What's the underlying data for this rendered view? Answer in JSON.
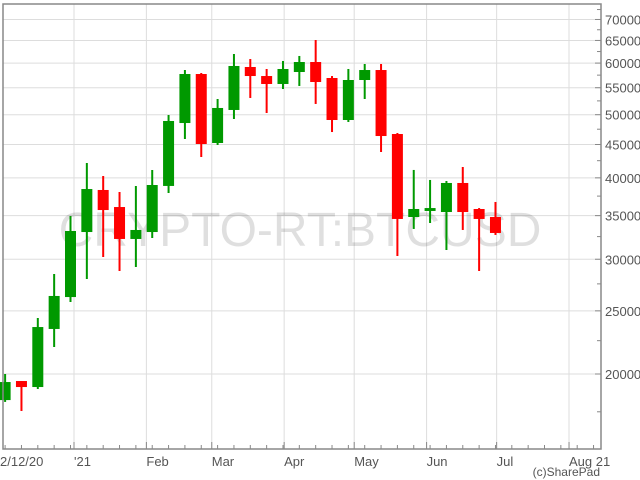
{
  "chart_data": {
    "type": "candlestick",
    "title": "",
    "watermark": "CRYPTO-RT:BTCUSD",
    "copyright": "(c)SharePad",
    "y_scale": "log",
    "ylim": [
      15300,
      74000
    ],
    "y_ticks": [
      20000,
      25000,
      30000,
      35000,
      40000,
      45000,
      50000,
      55000,
      60000,
      65000,
      70000
    ],
    "y_tick_labels": [
      "20000",
      "25000",
      "30000",
      "35000",
      "40000",
      "45000",
      "50000",
      "55000",
      "60000",
      "65000",
      "70000"
    ],
    "x_ticks": [
      {
        "date": "2020-12-02",
        "label": "2/12/20"
      },
      {
        "date": "2021-01-01",
        "label": "'21"
      },
      {
        "date": "2021-02-01",
        "label": "Feb"
      },
      {
        "date": "2021-03-01",
        "label": "Mar"
      },
      {
        "date": "2021-04-01",
        "label": "Apr"
      },
      {
        "date": "2021-05-01",
        "label": "May"
      },
      {
        "date": "2021-06-01",
        "label": "Jun"
      },
      {
        "date": "2021-07-01",
        "label": "Jul"
      },
      {
        "date": "2021-08-01",
        "label": "Aug 21"
      }
    ],
    "grid": true,
    "colors": {
      "up": "#009900",
      "down": "#ff0000",
      "grid": "#dddddd",
      "axis": "#888888"
    },
    "interval": "weekly",
    "candles": [
      {
        "date": "2020-11-30",
        "open": 18240,
        "high": 20000,
        "low": 18120,
        "close": 19440
      },
      {
        "date": "2020-12-07",
        "open": 19510,
        "high": 19510,
        "low": 17550,
        "close": 19100
      },
      {
        "date": "2020-12-14",
        "open": 19100,
        "high": 24380,
        "low": 18970,
        "close": 23610
      },
      {
        "date": "2020-12-21",
        "open": 23450,
        "high": 28480,
        "low": 22000,
        "close": 26350
      },
      {
        "date": "2020-12-28",
        "open": 26250,
        "high": 34950,
        "low": 25790,
        "close": 33150
      },
      {
        "date": "2021-01-04",
        "open": 33030,
        "high": 42150,
        "low": 27980,
        "close": 38450
      },
      {
        "date": "2021-01-11",
        "open": 38320,
        "high": 40260,
        "low": 30240,
        "close": 35700
      },
      {
        "date": "2021-01-18",
        "open": 36080,
        "high": 38050,
        "low": 28780,
        "close": 32230
      },
      {
        "date": "2021-01-25",
        "open": 32230,
        "high": 38870,
        "low": 29190,
        "close": 33270
      },
      {
        "date": "2021-02-01",
        "open": 33030,
        "high": 41130,
        "low": 32340,
        "close": 39000
      },
      {
        "date": "2021-02-08",
        "open": 38870,
        "high": 49940,
        "low": 37910,
        "close": 48900
      },
      {
        "date": "2021-02-15",
        "open": 48550,
        "high": 58550,
        "low": 45890,
        "close": 57730
      },
      {
        "date": "2021-02-22",
        "open": 57730,
        "high": 57940,
        "low": 43060,
        "close": 45080
      },
      {
        "date": "2021-03-01",
        "open": 45240,
        "high": 52850,
        "low": 44920,
        "close": 51200
      },
      {
        "date": "2021-03-08",
        "open": 50840,
        "high": 61960,
        "low": 49250,
        "close": 59390
      },
      {
        "date": "2021-03-15",
        "open": 59180,
        "high": 60870,
        "low": 53040,
        "close": 57320
      },
      {
        "date": "2021-03-22",
        "open": 57320,
        "high": 58760,
        "low": 50300,
        "close": 55730
      },
      {
        "date": "2021-03-29",
        "open": 55730,
        "high": 60450,
        "low": 54750,
        "close": 58760
      },
      {
        "date": "2021-04-05",
        "open": 58140,
        "high": 61530,
        "low": 55340,
        "close": 60230
      },
      {
        "date": "2021-04-12",
        "open": 60230,
        "high": 65100,
        "low": 51930,
        "close": 56120
      },
      {
        "date": "2021-04-19",
        "open": 56920,
        "high": 57320,
        "low": 47030,
        "close": 49070
      },
      {
        "date": "2021-04-26",
        "open": 49070,
        "high": 58760,
        "low": 48730,
        "close": 56520
      },
      {
        "date": "2021-05-03",
        "open": 56520,
        "high": 59810,
        "low": 52850,
        "close": 58550
      },
      {
        "date": "2021-05-10",
        "open": 58550,
        "high": 59810,
        "low": 43830,
        "close": 46370
      },
      {
        "date": "2021-05-17",
        "open": 46700,
        "high": 46870,
        "low": 30350,
        "close": 34590
      },
      {
        "date": "2021-05-24",
        "open": 34830,
        "high": 41130,
        "low": 33390,
        "close": 35830
      },
      {
        "date": "2021-05-31",
        "open": 35580,
        "high": 39700,
        "low": 34100,
        "close": 35950
      },
      {
        "date": "2021-06-07",
        "open": 35450,
        "high": 39560,
        "low": 31000,
        "close": 39280
      },
      {
        "date": "2021-06-14",
        "open": 39280,
        "high": 41560,
        "low": 33270,
        "close": 35450
      },
      {
        "date": "2021-06-21",
        "open": 35830,
        "high": 35950,
        "low": 28780,
        "close": 34590
      },
      {
        "date": "2021-06-28",
        "open": 34830,
        "high": 36730,
        "low": 32690,
        "close": 32920
      }
    ]
  }
}
